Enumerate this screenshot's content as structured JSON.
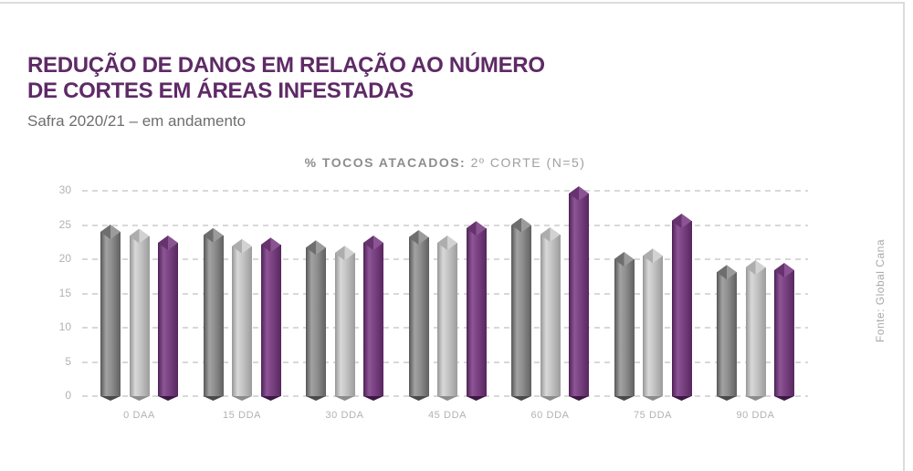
{
  "header": {
    "title_line1": "REDUÇÃO DE DANOS EM RELAÇÃO AO NÚMERO",
    "title_line2": "DE CORTES EM ÁREAS INFESTADAS",
    "subtitle": "Safra 2020/21 – em andamento"
  },
  "chart": {
    "title_bold": "% TOCOS ATACADOS:",
    "title_normal": "2º CORTE (N=5)"
  },
  "source_note": "Fonte: Global Cana",
  "colors": {
    "title_purple": "#5e2a66",
    "subtitle_gray": "#6e6e6e",
    "chart_title_gray": "#8d8d8d",
    "axis_label_gray": "#b2b2b2",
    "gridline_gray": "#d8d8d8",
    "bar_dark_gray": "#7d7d7d",
    "bar_light_gray": "#c0c0c0",
    "bar_purple": "#6d3a75"
  },
  "chart_data": {
    "type": "bar",
    "title": "% TOCOS ATACADOS: 2º CORTE (N=5)",
    "categories": [
      "0 DAA",
      "15 DDA",
      "30 DDA",
      "45 DDA",
      "60 DDA",
      "75 DDA",
      "90 DDA"
    ],
    "series": [
      {
        "name": "cinza-escuro",
        "color_key": "bar_dark_gray",
        "values": [
          24.0,
          23.5,
          21.7,
          23.2,
          25.0,
          20.0,
          18.1
        ]
      },
      {
        "name": "cinza-claro",
        "color_key": "bar_light_gray",
        "values": [
          23.4,
          21.9,
          20.9,
          22.4,
          23.6,
          20.5,
          18.8
        ]
      },
      {
        "name": "roxo",
        "color_key": "bar_purple",
        "values": [
          22.4,
          22.1,
          22.4,
          24.5,
          29.6,
          25.6,
          18.4
        ]
      }
    ],
    "xlabel": "",
    "ylabel": "",
    "ylim": [
      0,
      30
    ],
    "ytick_step": 5,
    "grid": "dashed-horizontal",
    "legend": "none",
    "style": "3d-columns"
  }
}
